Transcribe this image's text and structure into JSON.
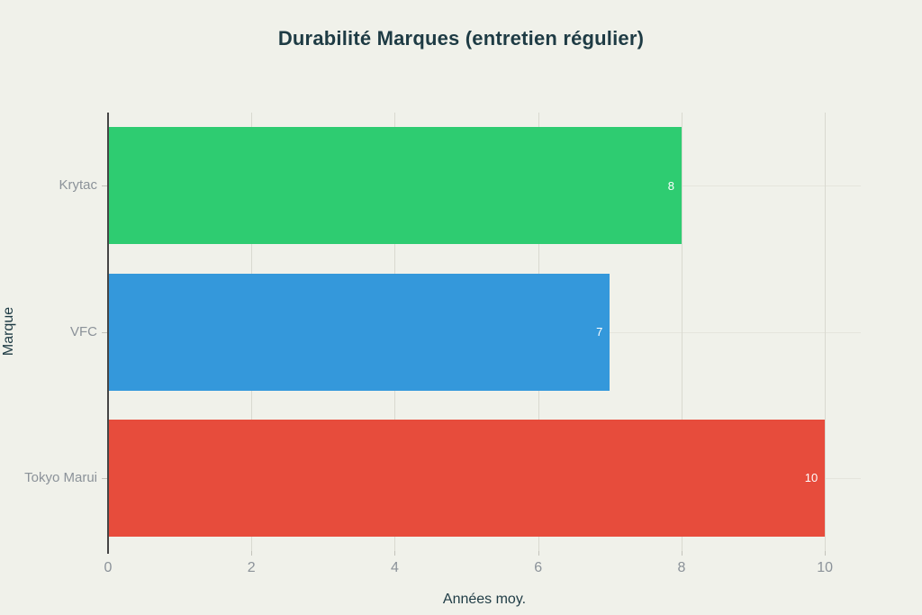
{
  "chart_data": {
    "type": "bar",
    "orientation": "horizontal",
    "title": "Durabilité Marques (entretien régulier)",
    "xlabel": "Années moy.",
    "ylabel": "Marque",
    "categories": [
      "Krytac",
      "VFC",
      "Tokyo Marui"
    ],
    "values": [
      8,
      7,
      10
    ],
    "value_labels": [
      "8",
      "7",
      "10"
    ],
    "bar_colors": [
      "#2ecc71",
      "#3498db",
      "#e74c3c"
    ],
    "xticks": [
      0,
      2,
      4,
      6,
      8,
      10
    ],
    "xlim": [
      0,
      10.5
    ],
    "grid": true,
    "legend": false
  },
  "colors": {
    "background": "#f0f1ea",
    "title_text": "#1e3b44",
    "axis_title_text": "#1e3b44",
    "tick_label_text": "#8b9299",
    "bar_value_text": "#ffffff",
    "vgrid": "#d9d9d0",
    "hgrid": "#e5e5dd",
    "zeroline": "#454545",
    "tick_mark": "#c3c3bb"
  }
}
